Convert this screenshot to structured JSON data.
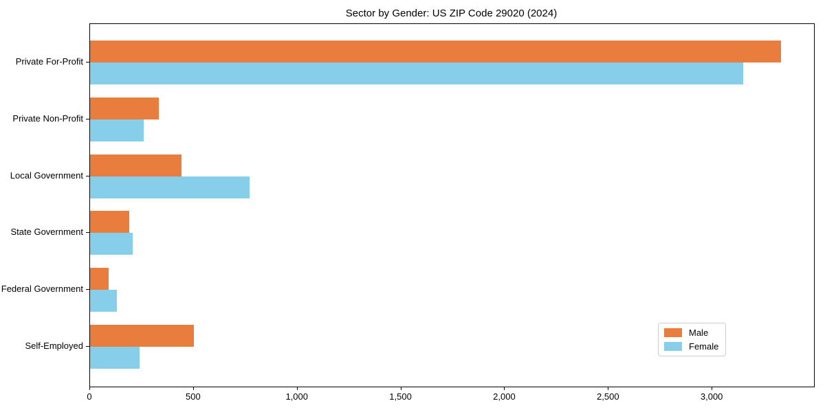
{
  "chart_data": {
    "type": "bar",
    "orientation": "horizontal",
    "title": "Sector by Gender: US ZIP Code 29020 (2024)",
    "xlabel": "",
    "ylabel": "",
    "categories": [
      "Private For-Profit",
      "Private Non-Profit",
      "Local Government",
      "State Government",
      "Federal Government",
      "Self-Employed"
    ],
    "series": [
      {
        "name": "Male",
        "color": "#e87d3e",
        "values": [
          3330,
          330,
          440,
          190,
          90,
          500
        ]
      },
      {
        "name": "Female",
        "color": "#87ceeb",
        "values": [
          3150,
          260,
          770,
          205,
          130,
          240
        ]
      }
    ],
    "xlim": [
      0,
      3490
    ],
    "xticks": [
      0,
      500,
      1000,
      1500,
      2000,
      2500,
      3000
    ],
    "xtick_labels": [
      "0",
      "500",
      "1,000",
      "1,500",
      "2,000",
      "2,500",
      "3,000"
    ],
    "grid": false,
    "legend_position": "lower right",
    "colors": {
      "spine": "#000000",
      "legend_border": "#cccccc",
      "background": "#ffffff"
    }
  }
}
